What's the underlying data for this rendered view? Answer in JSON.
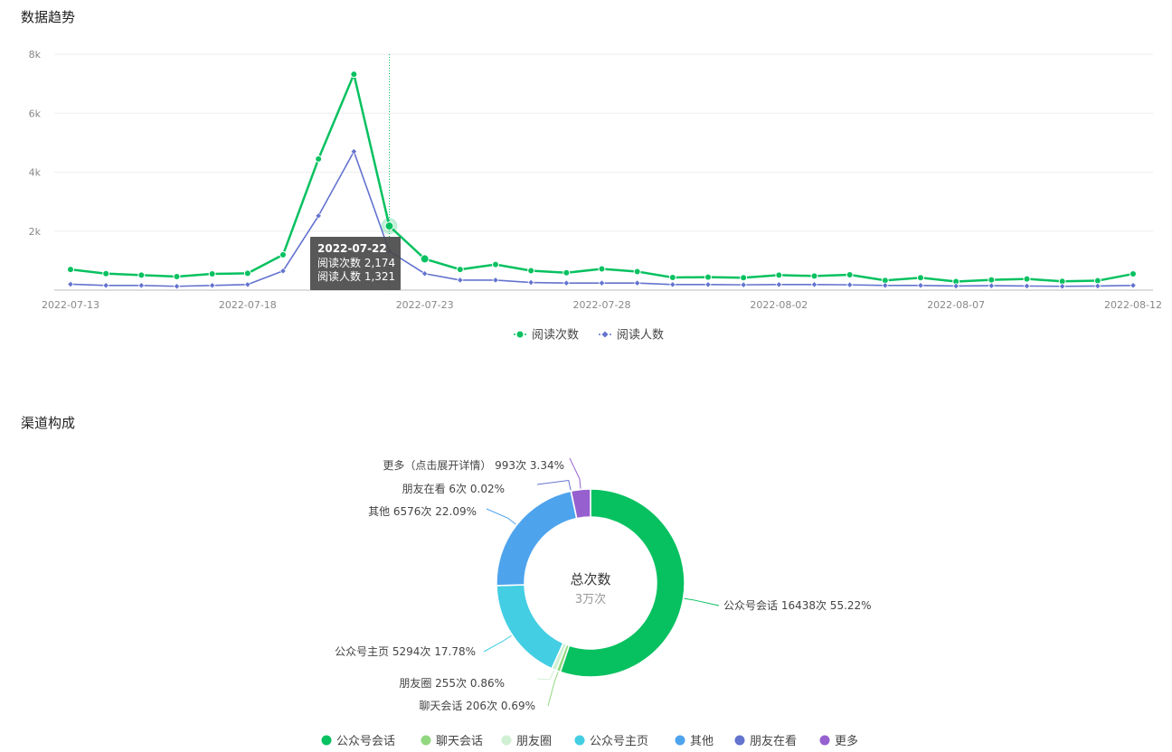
{
  "sections": {
    "trend_title": "数据趋势",
    "channel_title": "渠道构成"
  },
  "chart_data": [
    {
      "type": "line",
      "x": [
        "2022-07-13",
        "2022-07-14",
        "2022-07-15",
        "2022-07-16",
        "2022-07-17",
        "2022-07-18",
        "2022-07-19",
        "2022-07-20",
        "2022-07-21",
        "2022-07-22",
        "2022-07-23",
        "2022-07-24",
        "2022-07-25",
        "2022-07-26",
        "2022-07-27",
        "2022-07-28",
        "2022-07-29",
        "2022-07-30",
        "2022-07-31",
        "2022-08-01",
        "2022-08-02",
        "2022-08-03",
        "2022-08-04",
        "2022-08-05",
        "2022-08-06",
        "2022-08-07",
        "2022-08-08",
        "2022-08-09",
        "2022-08-10",
        "2022-08-11",
        "2022-08-12"
      ],
      "x_tick_labels": [
        "2022-07-13",
        "2022-07-18",
        "2022-07-23",
        "2022-07-28",
        "2022-08-02",
        "2022-08-07",
        "2022-08-12"
      ],
      "y_tick_labels": [
        "8k",
        "6k",
        "4k",
        "2k"
      ],
      "ylim": [
        0,
        8000
      ],
      "grid": true,
      "legend_position": "bottom",
      "series": [
        {
          "name": "阅读次数",
          "color": "#07c160",
          "marker": "circle",
          "values": [
            700,
            560,
            510,
            460,
            550,
            570,
            1200,
            4450,
            7320,
            2174,
            1060,
            700,
            870,
            660,
            590,
            720,
            630,
            430,
            440,
            420,
            510,
            480,
            520,
            330,
            420,
            290,
            350,
            380,
            300,
            320,
            550
          ]
        },
        {
          "name": "阅读人数",
          "color": "#6373ce",
          "marker": "diamond",
          "values": [
            200,
            160,
            160,
            130,
            160,
            190,
            650,
            2520,
            4700,
            1321,
            560,
            340,
            340,
            260,
            240,
            240,
            240,
            190,
            190,
            180,
            190,
            190,
            180,
            160,
            160,
            140,
            150,
            140,
            130,
            140,
            160
          ]
        }
      ],
      "tooltip": {
        "date": "2022-07-22",
        "lines": [
          "阅读次数 2,174",
          "阅读人数 1,321"
        ]
      }
    },
    {
      "type": "pie",
      "center_title": "总次数",
      "center_value": "3万次",
      "slices": [
        {
          "name": "公众号会话",
          "value": 16438,
          "percent": 55.22,
          "label": "公众号会话 16438次 55.22%",
          "color": "#07c160"
        },
        {
          "name": "聊天会话",
          "value": 206,
          "percent": 0.69,
          "label": "聊天会话 206次 0.69%",
          "color": "#91d77f"
        },
        {
          "name": "朋友圈",
          "value": 255,
          "percent": 0.86,
          "label": "朋友圈 255次 0.86%",
          "color": "#d0f0d4"
        },
        {
          "name": "公众号主页",
          "value": 5294,
          "percent": 17.78,
          "label": "公众号主页 5294次 17.78%",
          "color": "#43cee3"
        },
        {
          "name": "其他",
          "value": 6576,
          "percent": 22.09,
          "label": "其他 6576次 22.09%",
          "color": "#4ea3ed"
        },
        {
          "name": "朋友在看",
          "value": 6,
          "percent": 0.02,
          "label": "朋友在看 6次 0.02%",
          "color": "#6373ce"
        },
        {
          "name": "更多",
          "value": 993,
          "percent": 3.34,
          "label": "更多（点击展开详情） 993次 3.34%",
          "color": "#9661cf"
        }
      ]
    }
  ]
}
